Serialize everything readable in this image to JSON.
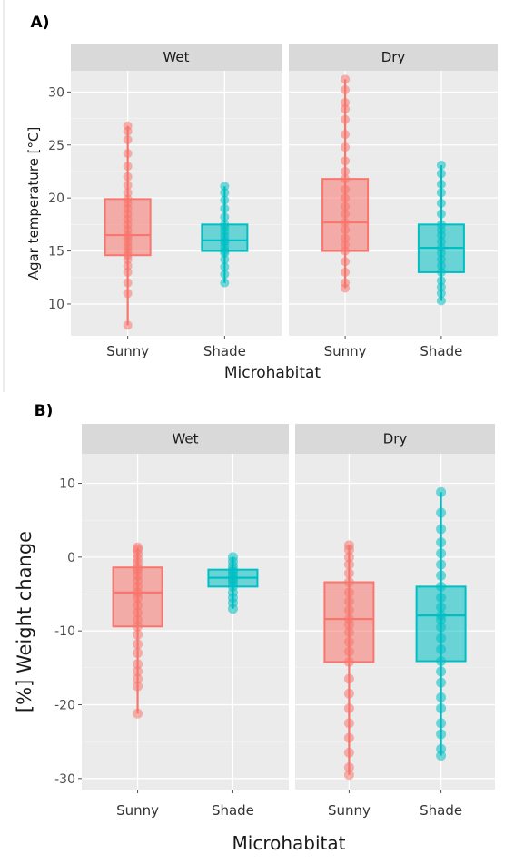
{
  "chart_data": [
    {
      "label": "A)",
      "type": "box",
      "facet_label_position": "top",
      "grid": true,
      "facets": [
        "Wet",
        "Dry"
      ],
      "categories": [
        "Sunny",
        "Shade"
      ],
      "xlabel": "Microhabitat",
      "ylabel": "Agar temperature [°C]",
      "ylim": [
        7,
        32
      ],
      "yticks": [
        10,
        15,
        20,
        25,
        30
      ],
      "colors": {
        "Sunny": "#F8766D",
        "Shade": "#00BFC4"
      },
      "boxes": [
        {
          "facet": "Wet",
          "category": "Sunny",
          "min": 8.0,
          "q1": 14.6,
          "median": 16.5,
          "q3": 19.9,
          "max": 26.8,
          "points": [
            8.0,
            11.0,
            12.0,
            13.0,
            13.6,
            14.2,
            14.6,
            15.0,
            15.4,
            15.8,
            16.2,
            16.5,
            17.0,
            17.5,
            18.0,
            18.5,
            19.0,
            19.5,
            19.9,
            20.5,
            21.2,
            22.0,
            23.0,
            24.2,
            25.5,
            26.3,
            26.8
          ]
        },
        {
          "facet": "Wet",
          "category": "Shade",
          "min": 12.0,
          "q1": 15.0,
          "median": 16.0,
          "q3": 17.5,
          "max": 21.1,
          "points": [
            12.0,
            12.8,
            13.5,
            14.2,
            14.8,
            15.0,
            15.4,
            15.8,
            16.0,
            16.4,
            16.8,
            17.2,
            17.5,
            18.2,
            19.0,
            19.8,
            20.5,
            21.1
          ]
        },
        {
          "facet": "Dry",
          "category": "Sunny",
          "min": 11.5,
          "q1": 15.0,
          "median": 17.7,
          "q3": 21.8,
          "max": 31.2,
          "points": [
            11.5,
            12.0,
            13.0,
            14.0,
            15.0,
            15.6,
            16.2,
            17.0,
            17.7,
            18.5,
            19.2,
            20.0,
            20.8,
            21.8,
            22.5,
            23.5,
            24.8,
            26.0,
            27.4,
            28.4,
            29.0,
            30.2,
            31.2
          ]
        },
        {
          "facet": "Dry",
          "category": "Shade",
          "min": 10.3,
          "q1": 13.0,
          "median": 15.3,
          "q3": 17.5,
          "max": 23.1,
          "points": [
            10.3,
            11.0,
            11.6,
            12.2,
            13.0,
            13.6,
            14.2,
            14.8,
            15.3,
            15.9,
            16.5,
            17.0,
            17.5,
            18.5,
            19.5,
            20.5,
            21.3,
            22.3,
            23.1
          ]
        }
      ]
    },
    {
      "label": "B)",
      "type": "box",
      "facet_label_position": "top",
      "grid": true,
      "facets": [
        "Wet",
        "Dry"
      ],
      "categories": [
        "Sunny",
        "Shade"
      ],
      "xlabel": "Microhabitat",
      "ylabel": "[%] Weight change",
      "ylim": [
        -31.5,
        14
      ],
      "yticks": [
        -30,
        -20,
        -10,
        0,
        10
      ],
      "colors": {
        "Sunny": "#F8766D",
        "Shade": "#00BFC4"
      },
      "boxes": [
        {
          "facet": "Wet",
          "category": "Sunny",
          "min": -21.2,
          "q1": -9.4,
          "median": -4.8,
          "q3": -1.4,
          "max": 1.3,
          "points": [
            -21.2,
            -17.5,
            -16.5,
            -15.5,
            -14.5,
            -13.0,
            -11.8,
            -10.5,
            -9.4,
            -8.5,
            -7.5,
            -6.5,
            -5.5,
            -4.8,
            -4.0,
            -3.2,
            -2.5,
            -1.8,
            -1.4,
            -0.8,
            -0.2,
            0.4,
            1.0,
            1.3
          ]
        },
        {
          "facet": "Wet",
          "category": "Shade",
          "min": -7.0,
          "q1": -4.0,
          "median": -2.8,
          "q3": -1.7,
          "max": 0.0,
          "points": [
            -7.0,
            -6.2,
            -5.5,
            -4.8,
            -4.0,
            -3.5,
            -3.1,
            -2.8,
            -2.4,
            -2.0,
            -1.7,
            -1.2,
            -0.6,
            0.0
          ]
        },
        {
          "facet": "Dry",
          "category": "Sunny",
          "min": -29.5,
          "q1": -14.2,
          "median": -8.4,
          "q3": -3.4,
          "max": 1.6,
          "points": [
            -29.5,
            -28.5,
            -26.5,
            -24.5,
            -22.5,
            -20.5,
            -18.5,
            -16.5,
            -14.2,
            -12.8,
            -11.5,
            -10.2,
            -9.2,
            -8.4,
            -7.2,
            -6.0,
            -4.8,
            -3.4,
            -2.2,
            -1.0,
            0.0,
            1.0,
            1.6
          ]
        },
        {
          "facet": "Dry",
          "category": "Shade",
          "min": -26.9,
          "q1": -14.1,
          "median": -7.9,
          "q3": -4.0,
          "max": 8.8,
          "points": [
            -26.9,
            -26.0,
            -24.0,
            -22.5,
            -20.5,
            -19.0,
            -17.0,
            -15.5,
            -14.1,
            -12.5,
            -11.0,
            -9.5,
            -8.5,
            -7.9,
            -6.8,
            -5.5,
            -4.0,
            -2.5,
            -1.0,
            0.5,
            2.0,
            3.8,
            6.0,
            8.8
          ]
        }
      ]
    }
  ]
}
